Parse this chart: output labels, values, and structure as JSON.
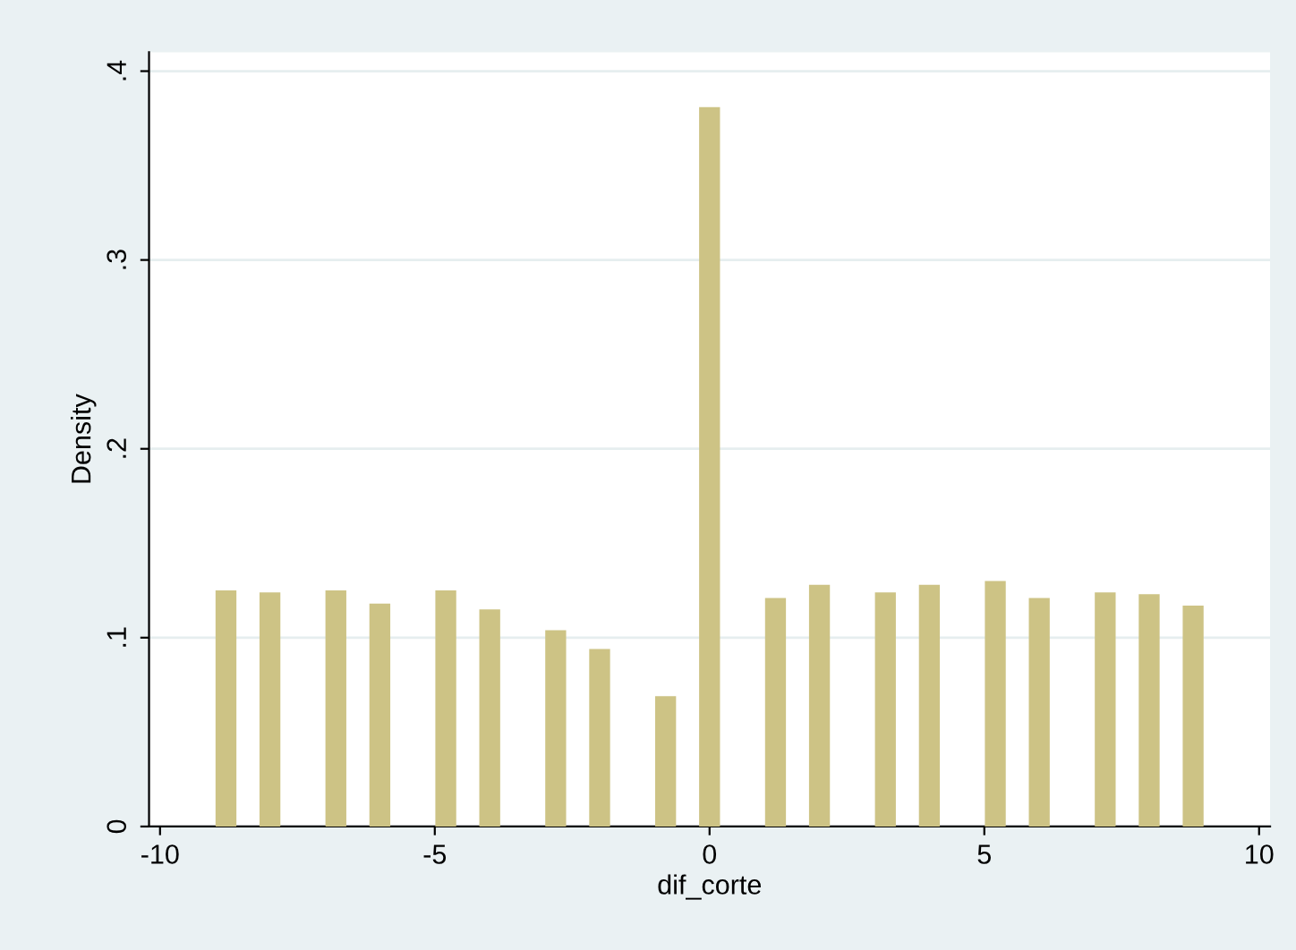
{
  "chart_data": {
    "type": "bar",
    "xlabel": "dif_corte",
    "ylabel": "Density",
    "x": [
      -8.8,
      -8,
      -6.8,
      -6,
      -4.8,
      -4,
      -2.8,
      -2,
      -0.8,
      0,
      1.2,
      2,
      3.2,
      4,
      5.2,
      6,
      7.2,
      8,
      8.8
    ],
    "values": [
      0.125,
      0.124,
      0.125,
      0.118,
      0.125,
      0.115,
      0.104,
      0.094,
      0.069,
      0.381,
      0.121,
      0.128,
      0.124,
      0.128,
      0.13,
      0.121,
      0.124,
      0.123,
      0.117
    ],
    "color": "#cdc385",
    "xlim": [
      -10.2,
      10.2
    ],
    "xticks": [
      -10,
      -5,
      0,
      5,
      10
    ],
    "ylim": [
      0,
      0.41
    ],
    "yticks": [
      0,
      {
        "value": 0.1,
        "label": ".1"
      },
      {
        "value": 0.2,
        "label": ".2"
      },
      {
        "value": 0.3,
        "label": ".3"
      },
      {
        "value": 0.4,
        "label": ".4"
      }
    ],
    "grid": "y"
  }
}
